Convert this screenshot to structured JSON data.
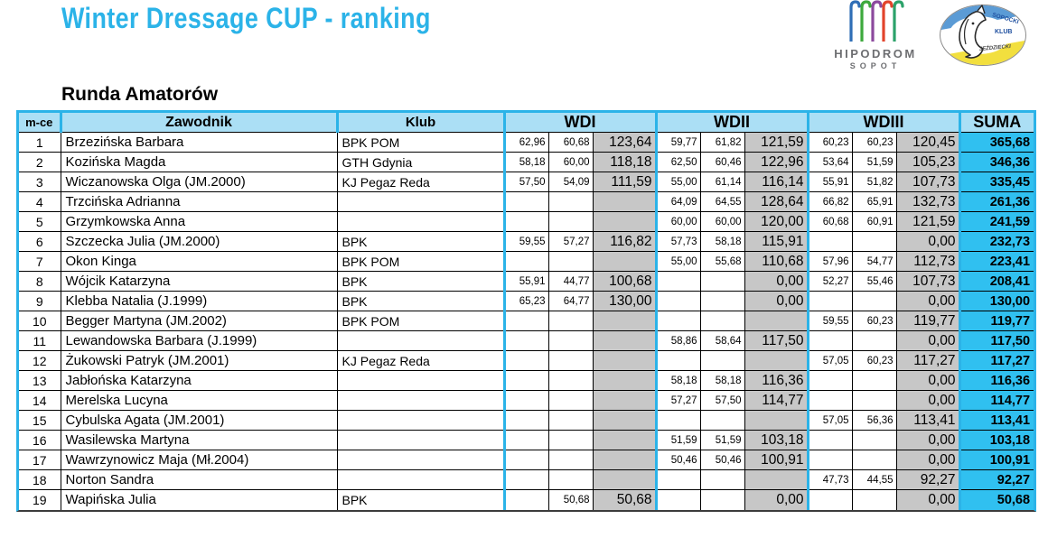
{
  "title": "Winter Dressage CUP - ranking",
  "section_title": "Runda Amatorów",
  "logos": {
    "hipodrom_title": "HIPODROM",
    "hipodrom_subtitle": "SOPOT",
    "club_arc_text": "SOPOCKI",
    "club_mid_text": "KLUB",
    "club_bottom_text": "JEŹDZIECKI"
  },
  "colors": {
    "accent_cyan": "#2bb3e8",
    "header_bg": "#abdff5",
    "suma_bg": "#30c0f0",
    "total_bg": "#c7c7c7",
    "title_color": "#2bb3e8"
  },
  "table": {
    "headers": {
      "place": "m-ce",
      "rider": "Zawodnik",
      "club": "Klub",
      "wd1": "WDI",
      "wd2": "WDII",
      "wd3": "WDIII",
      "suma": "SUMA"
    },
    "rows": [
      {
        "place": "1",
        "rider": "Brzezińska Barbara",
        "club": "BPK POM",
        "wd1": [
          "62,96",
          "60,68",
          "123,64"
        ],
        "wd2": [
          "59,77",
          "61,82",
          "121,59"
        ],
        "wd3": [
          "60,23",
          "60,23",
          "120,45"
        ],
        "suma": "365,68"
      },
      {
        "place": "2",
        "rider": "Kozińska Magda",
        "club": "GTH Gdynia",
        "wd1": [
          "58,18",
          "60,00",
          "118,18"
        ],
        "wd2": [
          "62,50",
          "60,46",
          "122,96"
        ],
        "wd3": [
          "53,64",
          "51,59",
          "105,23"
        ],
        "suma": "346,36"
      },
      {
        "place": "3",
        "rider": "Wiczanowska Olga (JM.2000)",
        "club": "KJ Pegaz Reda",
        "wd1": [
          "57,50",
          "54,09",
          "111,59"
        ],
        "wd2": [
          "55,00",
          "61,14",
          "116,14"
        ],
        "wd3": [
          "55,91",
          "51,82",
          "107,73"
        ],
        "suma": "335,45"
      },
      {
        "place": "4",
        "rider": "Trzcińska Adrianna",
        "club": "",
        "wd1": [
          "",
          "",
          ""
        ],
        "wd2": [
          "64,09",
          "64,55",
          "128,64"
        ],
        "wd3": [
          "66,82",
          "65,91",
          "132,73"
        ],
        "suma": "261,36"
      },
      {
        "place": "5",
        "rider": "Grzymkowska Anna",
        "club": "",
        "wd1": [
          "",
          "",
          ""
        ],
        "wd2": [
          "60,00",
          "60,00",
          "120,00"
        ],
        "wd3": [
          "60,68",
          "60,91",
          "121,59"
        ],
        "suma": "241,59"
      },
      {
        "place": "6",
        "rider": "Szczecka Julia (JM.2000)",
        "club": "BPK",
        "wd1": [
          "59,55",
          "57,27",
          "116,82"
        ],
        "wd2": [
          "57,73",
          "58,18",
          "115,91"
        ],
        "wd3": [
          "",
          "",
          "0,00"
        ],
        "suma": "232,73"
      },
      {
        "place": "7",
        "rider": "Okon Kinga",
        "club": "BPK POM",
        "wd1": [
          "",
          "",
          ""
        ],
        "wd2": [
          "55,00",
          "55,68",
          "110,68"
        ],
        "wd3": [
          "57,96",
          "54,77",
          "112,73"
        ],
        "suma": "223,41"
      },
      {
        "place": "8",
        "rider": "Wójcik Katarzyna",
        "club": "BPK",
        "wd1": [
          "55,91",
          "44,77",
          "100,68"
        ],
        "wd2": [
          "",
          "",
          "0,00"
        ],
        "wd3": [
          "52,27",
          "55,46",
          "107,73"
        ],
        "suma": "208,41"
      },
      {
        "place": "9",
        "rider": "Klebba Natalia (J.1999)",
        "club": "BPK",
        "wd1": [
          "65,23",
          "64,77",
          "130,00"
        ],
        "wd2": [
          "",
          "",
          "0,00"
        ],
        "wd3": [
          "",
          "",
          "0,00"
        ],
        "suma": "130,00"
      },
      {
        "place": "10",
        "rider": "Begger Martyna (JM.2002)",
        "club": "BPK POM",
        "wd1": [
          "",
          "",
          ""
        ],
        "wd2": [
          "",
          "",
          ""
        ],
        "wd3": [
          "59,55",
          "60,23",
          "119,77"
        ],
        "suma": "119,77"
      },
      {
        "place": "11",
        "rider": "Lewandowska Barbara (J.1999)",
        "club": "",
        "wd1": [
          "",
          "",
          ""
        ],
        "wd2": [
          "58,86",
          "58,64",
          "117,50"
        ],
        "wd3": [
          "",
          "",
          "0,00"
        ],
        "suma": "117,50"
      },
      {
        "place": "12",
        "rider": "Żukowski Patryk (JM.2001)",
        "club": "KJ Pegaz Reda",
        "wd1": [
          "",
          "",
          ""
        ],
        "wd2": [
          "",
          "",
          ""
        ],
        "wd3": [
          "57,05",
          "60,23",
          "117,27"
        ],
        "suma": "117,27"
      },
      {
        "place": "13",
        "rider": "Jabłońska Katarzyna",
        "club": "",
        "wd1": [
          "",
          "",
          ""
        ],
        "wd2": [
          "58,18",
          "58,18",
          "116,36"
        ],
        "wd3": [
          "",
          "",
          "0,00"
        ],
        "suma": "116,36"
      },
      {
        "place": "14",
        "rider": "Merelska Lucyna",
        "club": "",
        "wd1": [
          "",
          "",
          ""
        ],
        "wd2": [
          "57,27",
          "57,50",
          "114,77"
        ],
        "wd3": [
          "",
          "",
          "0,00"
        ],
        "suma": "114,77"
      },
      {
        "place": "15",
        "rider": "Cybulska Agata (JM.2001)",
        "club": "",
        "wd1": [
          "",
          "",
          ""
        ],
        "wd2": [
          "",
          "",
          ""
        ],
        "wd3": [
          "57,05",
          "56,36",
          "113,41"
        ],
        "suma": "113,41"
      },
      {
        "place": "16",
        "rider": "Wasilewska Martyna",
        "club": "",
        "wd1": [
          "",
          "",
          ""
        ],
        "wd2": [
          "51,59",
          "51,59",
          "103,18"
        ],
        "wd3": [
          "",
          "",
          "0,00"
        ],
        "suma": "103,18"
      },
      {
        "place": "17",
        "rider": "Wawrzynowicz Maja (Mł.2004)",
        "club": "",
        "wd1": [
          "",
          "",
          ""
        ],
        "wd2": [
          "50,46",
          "50,46",
          "100,91"
        ],
        "wd3": [
          "",
          "",
          "0,00"
        ],
        "suma": "100,91"
      },
      {
        "place": "18",
        "rider": "Norton Sandra",
        "club": "",
        "wd1": [
          "",
          "",
          ""
        ],
        "wd2": [
          "",
          "",
          ""
        ],
        "wd3": [
          "47,73",
          "44,55",
          "92,27"
        ],
        "suma": "92,27"
      },
      {
        "place": "19",
        "rider": "Wapińska Julia",
        "club": "BPK",
        "wd1": [
          "",
          "50,68",
          "50,68"
        ],
        "wd2": [
          "",
          "",
          "0,00"
        ],
        "wd3": [
          "",
          "",
          "0,00"
        ],
        "suma": "50,68"
      }
    ]
  }
}
